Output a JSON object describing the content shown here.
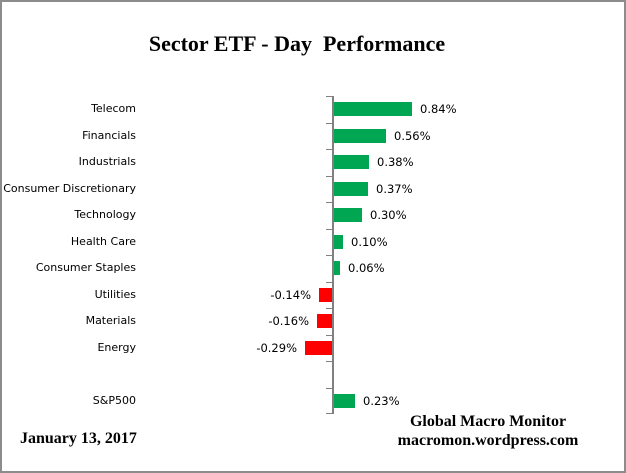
{
  "title": "Sector ETF - Day  Performance",
  "footer": {
    "date": "January 13, 2017",
    "attribution_line1": "Global Macro Monitor",
    "attribution_line2": "macromon.wordpress.com"
  },
  "colors": {
    "positive_bar": "#00A651",
    "negative_bar": "#FF0000",
    "axis": "#808080",
    "border": "#8C8C8C",
    "text": "#000000"
  },
  "chart_data": {
    "type": "bar",
    "orientation": "horizontal",
    "title": "Sector ETF - Day  Performance",
    "unit": "%",
    "categories": [
      "Telecom",
      "Financials",
      "Industrials",
      "Consumer Discretionary",
      "Technology",
      "Health Care",
      "Consumer Staples",
      "Utilities",
      "Materials",
      "Energy",
      "",
      "S&P500"
    ],
    "values": [
      0.84,
      0.56,
      0.38,
      0.37,
      0.3,
      0.1,
      0.06,
      -0.14,
      -0.16,
      -0.29,
      null,
      0.23
    ],
    "value_labels": [
      "0.84%",
      "0.56%",
      "0.38%",
      "0.37%",
      "0.30%",
      "0.10%",
      "0.06%",
      "-0.14%",
      "-0.16%",
      "-0.29%",
      "",
      "0.23%"
    ],
    "legend": "none",
    "grid": false,
    "value_axis_labels_visible": false,
    "baseline": 0
  }
}
